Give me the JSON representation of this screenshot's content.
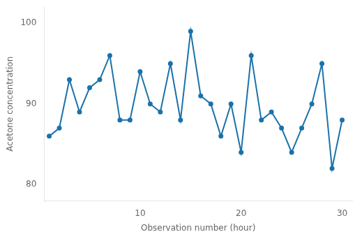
{
  "chart_data": {
    "type": "line",
    "x": [
      1,
      2,
      3,
      4,
      5,
      6,
      7,
      8,
      9,
      10,
      11,
      12,
      13,
      14,
      15,
      16,
      17,
      18,
      19,
      20,
      21,
      22,
      23,
      24,
      25,
      26,
      27,
      28,
      29,
      30
    ],
    "values": [
      86,
      87,
      93,
      89,
      92,
      93,
      96,
      88,
      88,
      94,
      90,
      89,
      95,
      88,
      99,
      91,
      90,
      86,
      90,
      84,
      96,
      88,
      89,
      87,
      84,
      87,
      90,
      95,
      82,
      88
    ],
    "color": "#1a72aa",
    "marker": "circle",
    "xlabel": "Observation number (hour)",
    "ylabel": "Acetone concentration",
    "xlim": [
      0.5,
      31
    ],
    "ylim": [
      78,
      102
    ],
    "xticks": [
      10,
      20,
      30
    ],
    "yticks": [
      80,
      90,
      100
    ],
    "grid": false
  }
}
